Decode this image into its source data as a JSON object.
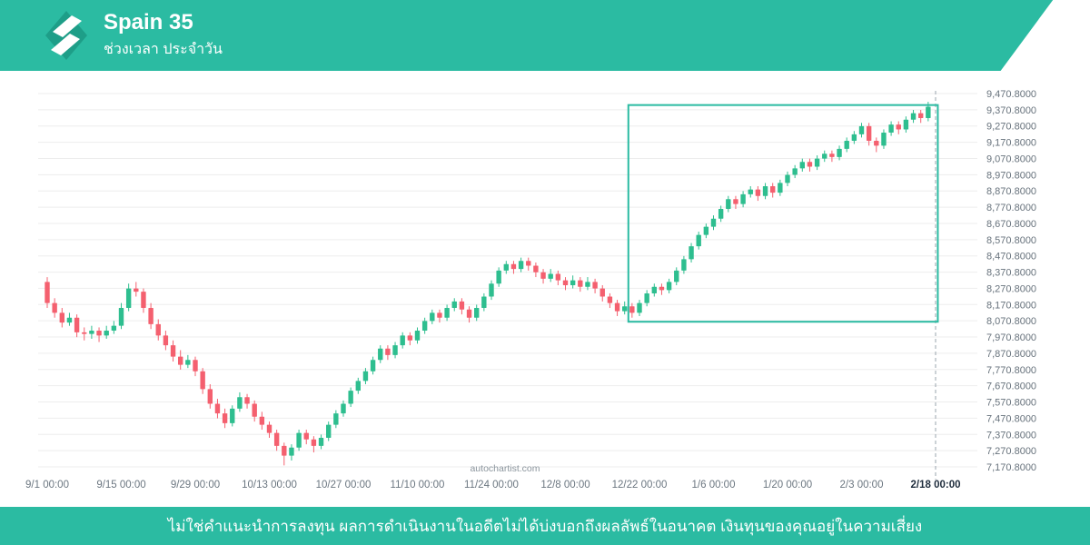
{
  "header": {
    "title": "Spain 35",
    "subtitle": "ช่วงเวลา ประจำวัน",
    "brand_color": "#2BBBA2"
  },
  "watermark": "autochartist.com",
  "footer": {
    "disclaimer": "ไม่ใช่คำแนะนำการลงทุน ผลการดำเนินงานในอดีตไม่ได้บ่งบอกถึงผลลัพธ์ในอนาคต เงินทุนของคุณอยู่ในความเสี่ยง"
  },
  "chart_data": {
    "type": "candlestick",
    "instrument": "Spain 35",
    "timeframe_label": "ช่วงเวลา ประจำวัน",
    "grid": true,
    "legend_position": "none",
    "y_axis_side": "right",
    "y_max": 9470.8,
    "y_min": 7170.8,
    "y_step": 100,
    "y_tick_labels": [
      "9,470.8000",
      "9,370.8000",
      "9,270.8000",
      "9,170.8000",
      "9,070.8000",
      "8,970.8000",
      "8,870.8000",
      "8,770.8000",
      "8,670.8000",
      "8,570.8000",
      "8,470.8000",
      "8,370.8000",
      "8,270.8000",
      "8,170.8000",
      "8,070.8000",
      "7,970.8000",
      "7,870.8000",
      "7,770.8000",
      "7,670.8000",
      "7,570.8000",
      "7,470.8000",
      "7,370.8000",
      "7,270.8000",
      "7,170.8000"
    ],
    "x_tick_labels": [
      "9/1 00:00",
      "9/15 00:00",
      "9/29 00:00",
      "10/13 00:00",
      "10/27 00:00",
      "11/10 00:00",
      "11/24 00:00",
      "12/8 00:00",
      "12/22 00:00",
      "1/6 00:00",
      "1/20 00:00",
      "2/3 00:00",
      "2/18 00:00"
    ],
    "x_tick_candle_indices": [
      0,
      10,
      20,
      30,
      40,
      50,
      60,
      70,
      80,
      90,
      100,
      110,
      120
    ],
    "emphasize_last_x_tick": true,
    "last_session_line_index": 120,
    "highlight_box": {
      "start_index": 78.5,
      "end_index": 120.3,
      "price_top": 9400,
      "price_bottom": 8065,
      "color": "#2BBBA2"
    },
    "colors": {
      "up": "#2EBE8F",
      "down": "#F4606F",
      "grid": "#EDEDED",
      "axis_text": "#67727C",
      "x_text": "#6B7680",
      "x_text_emphasis": "#1F2D3D",
      "dashed_line": "#9AA4AD"
    },
    "candles": [
      [
        8310,
        8340,
        8150,
        8180
      ],
      [
        8180,
        8210,
        8090,
        8120
      ],
      [
        8120,
        8150,
        8030,
        8060
      ],
      [
        8060,
        8120,
        8040,
        8090
      ],
      [
        8090,
        8110,
        7970,
        8000
      ],
      [
        8000,
        8030,
        7950,
        7990
      ],
      [
        7990,
        8040,
        7960,
        8010
      ],
      [
        8010,
        8030,
        7940,
        7980
      ],
      [
        7980,
        8040,
        7960,
        8010
      ],
      [
        8010,
        8070,
        7990,
        8040
      ],
      [
        8040,
        8180,
        8020,
        8150
      ],
      [
        8150,
        8300,
        8130,
        8270
      ],
      [
        8270,
        8310,
        8220,
        8250
      ],
      [
        8250,
        8270,
        8120,
        8150
      ],
      [
        8150,
        8180,
        8020,
        8050
      ],
      [
        8050,
        8080,
        7950,
        7980
      ],
      [
        7980,
        8010,
        7890,
        7920
      ],
      [
        7920,
        7950,
        7820,
        7850
      ],
      [
        7850,
        7890,
        7770,
        7800
      ],
      [
        7800,
        7860,
        7780,
        7830
      ],
      [
        7830,
        7850,
        7730,
        7760
      ],
      [
        7760,
        7780,
        7620,
        7650
      ],
      [
        7650,
        7680,
        7530,
        7560
      ],
      [
        7560,
        7590,
        7470,
        7500
      ],
      [
        7500,
        7530,
        7410,
        7440
      ],
      [
        7440,
        7550,
        7420,
        7530
      ],
      [
        7530,
        7630,
        7510,
        7600
      ],
      [
        7600,
        7620,
        7530,
        7560
      ],
      [
        7560,
        7580,
        7450,
        7480
      ],
      [
        7480,
        7510,
        7400,
        7430
      ],
      [
        7430,
        7450,
        7350,
        7380
      ],
      [
        7380,
        7400,
        7270,
        7300
      ],
      [
        7300,
        7320,
        7180,
        7240
      ],
      [
        7240,
        7310,
        7210,
        7290
      ],
      [
        7290,
        7400,
        7270,
        7380
      ],
      [
        7380,
        7400,
        7310,
        7340
      ],
      [
        7340,
        7360,
        7260,
        7300
      ],
      [
        7300,
        7370,
        7280,
        7350
      ],
      [
        7350,
        7450,
        7330,
        7430
      ],
      [
        7430,
        7520,
        7410,
        7500
      ],
      [
        7500,
        7580,
        7480,
        7560
      ],
      [
        7560,
        7660,
        7540,
        7640
      ],
      [
        7640,
        7720,
        7620,
        7700
      ],
      [
        7700,
        7780,
        7680,
        7760
      ],
      [
        7760,
        7850,
        7740,
        7830
      ],
      [
        7830,
        7920,
        7810,
        7900
      ],
      [
        7900,
        7920,
        7830,
        7860
      ],
      [
        7860,
        7940,
        7840,
        7920
      ],
      [
        7920,
        8000,
        7900,
        7980
      ],
      [
        7980,
        8000,
        7920,
        7950
      ],
      [
        7950,
        8030,
        7930,
        8010
      ],
      [
        8010,
        8090,
        7990,
        8070
      ],
      [
        8070,
        8140,
        8050,
        8120
      ],
      [
        8120,
        8140,
        8060,
        8090
      ],
      [
        8090,
        8170,
        8070,
        8150
      ],
      [
        8150,
        8210,
        8130,
        8190
      ],
      [
        8190,
        8210,
        8110,
        8140
      ],
      [
        8140,
        8160,
        8060,
        8090
      ],
      [
        8090,
        8170,
        8070,
        8150
      ],
      [
        8150,
        8240,
        8130,
        8220
      ],
      [
        8220,
        8320,
        8200,
        8300
      ],
      [
        8300,
        8400,
        8280,
        8380
      ],
      [
        8380,
        8440,
        8360,
        8420
      ],
      [
        8420,
        8440,
        8360,
        8390
      ],
      [
        8390,
        8460,
        8370,
        8440
      ],
      [
        8440,
        8460,
        8380,
        8410
      ],
      [
        8410,
        8430,
        8340,
        8370
      ],
      [
        8370,
        8390,
        8300,
        8330
      ],
      [
        8330,
        8390,
        8310,
        8360
      ],
      [
        8360,
        8380,
        8290,
        8320
      ],
      [
        8320,
        8340,
        8260,
        8290
      ],
      [
        8290,
        8350,
        8270,
        8320
      ],
      [
        8320,
        8340,
        8250,
        8280
      ],
      [
        8280,
        8340,
        8260,
        8310
      ],
      [
        8310,
        8330,
        8240,
        8270
      ],
      [
        8270,
        8290,
        8190,
        8220
      ],
      [
        8220,
        8240,
        8150,
        8180
      ],
      [
        8180,
        8200,
        8100,
        8130
      ],
      [
        8130,
        8190,
        8110,
        8160
      ],
      [
        8160,
        8180,
        8090,
        8120
      ],
      [
        8120,
        8200,
        8100,
        8180
      ],
      [
        8180,
        8260,
        8160,
        8240
      ],
      [
        8240,
        8300,
        8220,
        8280
      ],
      [
        8280,
        8300,
        8230,
        8260
      ],
      [
        8260,
        8330,
        8240,
        8310
      ],
      [
        8310,
        8400,
        8290,
        8380
      ],
      [
        8380,
        8470,
        8360,
        8450
      ],
      [
        8450,
        8550,
        8430,
        8530
      ],
      [
        8530,
        8620,
        8510,
        8600
      ],
      [
        8600,
        8670,
        8580,
        8650
      ],
      [
        8650,
        8720,
        8630,
        8700
      ],
      [
        8700,
        8780,
        8680,
        8760
      ],
      [
        8760,
        8840,
        8740,
        8820
      ],
      [
        8820,
        8840,
        8760,
        8790
      ],
      [
        8790,
        8870,
        8770,
        8850
      ],
      [
        8850,
        8900,
        8830,
        8880
      ],
      [
        8880,
        8900,
        8810,
        8840
      ],
      [
        8840,
        8920,
        8820,
        8900
      ],
      [
        8900,
        8920,
        8830,
        8860
      ],
      [
        8860,
        8940,
        8840,
        8920
      ],
      [
        8920,
        8990,
        8900,
        8970
      ],
      [
        8970,
        9030,
        8950,
        9010
      ],
      [
        9010,
        9070,
        8990,
        9050
      ],
      [
        9050,
        9070,
        8990,
        9020
      ],
      [
        9020,
        9090,
        9000,
        9070
      ],
      [
        9070,
        9120,
        9050,
        9100
      ],
      [
        9100,
        9120,
        9050,
        9080
      ],
      [
        9080,
        9150,
        9060,
        9130
      ],
      [
        9130,
        9200,
        9110,
        9180
      ],
      [
        9180,
        9240,
        9160,
        9220
      ],
      [
        9220,
        9290,
        9200,
        9270
      ],
      [
        9270,
        9290,
        9150,
        9180
      ],
      [
        9180,
        9200,
        9110,
        9150
      ],
      [
        9150,
        9250,
        9130,
        9230
      ],
      [
        9230,
        9300,
        9210,
        9280
      ],
      [
        9280,
        9300,
        9220,
        9250
      ],
      [
        9250,
        9330,
        9230,
        9310
      ],
      [
        9310,
        9370,
        9290,
        9350
      ],
      [
        9350,
        9370,
        9290,
        9320
      ],
      [
        9320,
        9420,
        9300,
        9390
      ]
    ]
  }
}
